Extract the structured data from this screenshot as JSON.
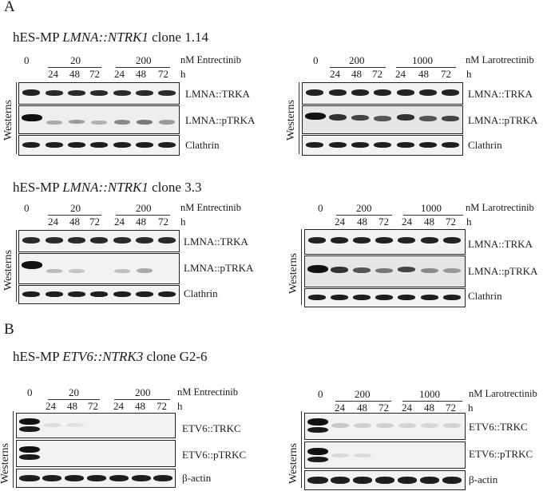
{
  "section_a": {
    "letter": "A",
    "panels": [
      {
        "title_prefix": "hES-MP ",
        "title_gene": "LMNA::NTRK1",
        "title_suffix": " clone 1.14",
        "drug_label": "nM Entrectinib",
        "dose0": "0",
        "dose1": "20",
        "dose2": "200",
        "times": [
          "24",
          "48",
          "72",
          "24",
          "48",
          "72"
        ],
        "hour_label": "h",
        "westerns_label": "Westerns",
        "rows": [
          "LMNA::TRKA",
          "LMNA::pTRKA",
          "Clathrin"
        ]
      },
      {
        "drug_label": "nM Larotrectinib",
        "dose0": "0",
        "dose1": "200",
        "dose2": "1000",
        "times": [
          "24",
          "48",
          "72",
          "24",
          "48",
          "72"
        ],
        "hour_label": "h",
        "westerns_label": "Westerns",
        "rows": [
          "LMNA::TRKA",
          "LMNA::pTRKA",
          "Clathrin"
        ]
      },
      {
        "title_prefix": "hES-MP ",
        "title_gene": "LMNA::NTRK1",
        "title_suffix": " clone 3.3",
        "drug_label": "nM Entrectinib",
        "dose0": "0",
        "dose1": "20",
        "dose2": "200",
        "times": [
          "24",
          "48",
          "72",
          "24",
          "48",
          "72"
        ],
        "hour_label": "h",
        "westerns_label": "Westerns",
        "rows": [
          "LMNA::TRKA",
          "LMNA::pTRKA",
          "Clathrin"
        ]
      },
      {
        "drug_label": "nM Larotrectinib",
        "dose0": "0",
        "dose1": "200",
        "dose2": "1000",
        "times": [
          "24",
          "48",
          "72",
          "24",
          "48",
          "72"
        ],
        "hour_label": "h",
        "westerns_label": "Westerns",
        "rows": [
          "LMNA::TRKA",
          "LMNA::pTRKA",
          "Clathrin"
        ]
      }
    ]
  },
  "section_b": {
    "letter": "B",
    "panels": [
      {
        "title_prefix": "hES-MP ",
        "title_gene": "ETV6::NTRK3",
        "title_suffix": " clone G2-6",
        "drug_label": "nM Entrectinib",
        "dose0": "0",
        "dose1": "20",
        "dose2": "200",
        "times": [
          "24",
          "48",
          "72",
          "24",
          "48",
          "72"
        ],
        "hour_label": "h",
        "westerns_label": "Westerns",
        "rows": [
          "ETV6::TRKC",
          "ETV6::pTRKC",
          "β-actin"
        ]
      },
      {
        "drug_label": "nM Larotrectinib",
        "dose0": "0",
        "dose1": "200",
        "dose2": "1000",
        "times": [
          "24",
          "48",
          "72",
          "24",
          "48",
          "72"
        ],
        "hour_label": "h",
        "westerns_label": "Westerns",
        "rows": [
          "ETV6::TRKC",
          "ETV6::pTRKC",
          "β-actin"
        ]
      }
    ]
  }
}
